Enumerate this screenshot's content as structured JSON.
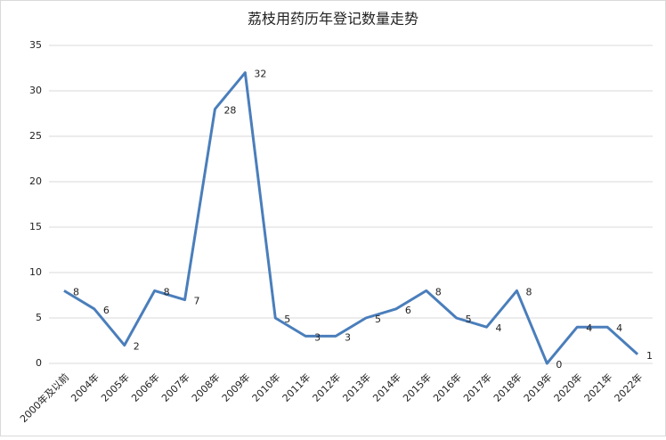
{
  "chart_data": {
    "type": "line",
    "title": "荔枝用药历年登记数量走势",
    "categories": [
      "2000年及以前",
      "2004年",
      "2005年",
      "2006年",
      "2007年",
      "2008年",
      "2009年",
      "2010年",
      "2011年",
      "2012年",
      "2013年",
      "2014年",
      "2015年",
      "2016年",
      "2017年",
      "2018年",
      "2019年",
      "2020年",
      "2021年",
      "2022年"
    ],
    "values": [
      8,
      6,
      2,
      8,
      7,
      28,
      32,
      5,
      3,
      3,
      5,
      6,
      8,
      5,
      4,
      8,
      0,
      4,
      4,
      1
    ],
    "color": "#4a7ebb",
    "ylim": [
      0,
      35
    ],
    "yticks": [
      0,
      5,
      10,
      15,
      20,
      25,
      30,
      35
    ],
    "grid": true
  }
}
